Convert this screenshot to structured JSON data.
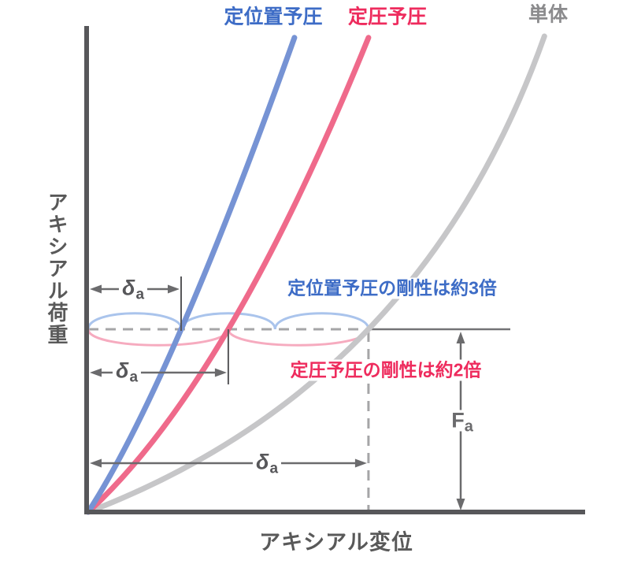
{
  "chart_data": {
    "type": "line",
    "title": "",
    "xlabel": "アキシアル変位",
    "ylabel": "アキシアル荷重",
    "x_axis_numeric": false,
    "y_axis_numeric": false,
    "grid": false,
    "legend_position": "top",
    "series": [
      {
        "name": "定位置予圧",
        "color_key": "blue_curve",
        "deflection_at_Fa": 18.7,
        "points": [
          [
            0,
            0
          ],
          [
            18.7,
            37.6
          ],
          [
            41.5,
            97.6
          ]
        ]
      },
      {
        "name": "定圧予圧",
        "color_key": "pink_curve",
        "deflection_at_Fa": 28.2,
        "points": [
          [
            0,
            0
          ],
          [
            28.2,
            37.6
          ],
          [
            56.4,
            97.6
          ]
        ]
      },
      {
        "name": "単体",
        "color_key": "gray_curve",
        "deflection_at_Fa": 56.4,
        "points": [
          [
            0,
            0
          ],
          [
            56.4,
            37.6
          ],
          [
            91.8,
            97.9
          ]
        ]
      }
    ],
    "reference_load": {
      "label": "Fa",
      "level": 37.6
    },
    "deflection_symbol": "δa",
    "annotations": [
      "定位置予圧の剛性は約3倍",
      "定圧予圧の剛性は約2倍"
    ]
  },
  "labels": {
    "y_axis": "アキシアル荷重",
    "x_axis": "アキシアル変位",
    "series_fixed_position": "定位置予圧",
    "series_constant_pressure": "定圧予圧",
    "series_single": "単体",
    "note_fixed_position": "定位置予圧の剛性は約3倍",
    "note_constant_pressure": "定圧予圧の剛性は約2倍",
    "delta": "δ",
    "sub_a": "a",
    "force": "F"
  },
  "colors": {
    "blue_curve": "#7693d4",
    "pink_curve": "#ef6a8b",
    "gray_curve": "#c6c6c8",
    "blue_text": "#3d6cc6",
    "pink_text": "#ee2b5d",
    "gray_text": "#8b8b8d",
    "axis": "#57575a",
    "axis_text": "#595959",
    "arrow": "#6b6b6d",
    "delta_text": "#57575a",
    "fa_text": "#6b6b6d",
    "dashed": "#a5a5a7",
    "fa_line": "#737376",
    "arc_blue": "#aac4ec",
    "arc_pink": "#f6abbf"
  }
}
